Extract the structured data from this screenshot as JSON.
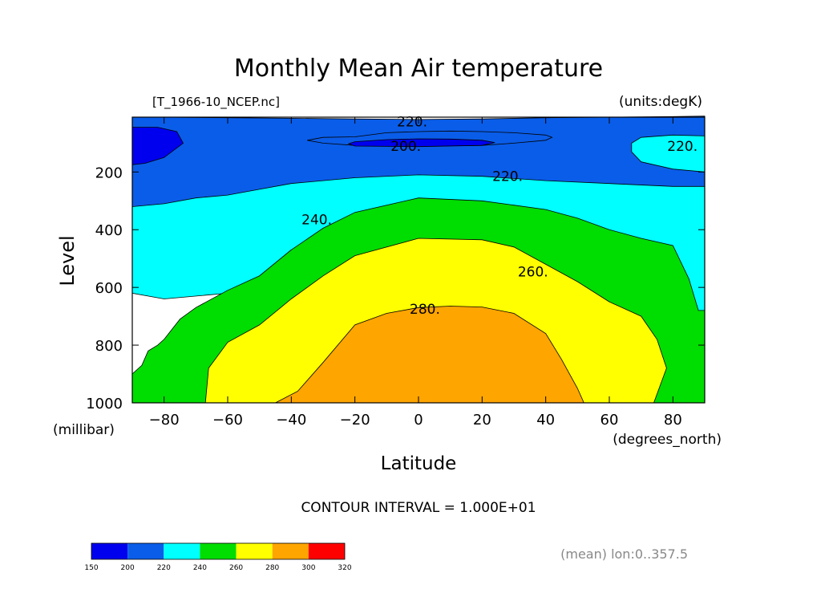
{
  "chart_data": {
    "type": "heatmap",
    "title": "Monthly Mean Air temperature",
    "file_label": "[T_1966-10_NCEP.nc]",
    "units_label": "(units:degK)",
    "xlabel": "Latitude",
    "x_units": "(degrees_north)",
    "ylabel": "Level",
    "y_units": "(millibar)",
    "xlim": [
      -90,
      90
    ],
    "ylim": [
      1000,
      10
    ],
    "x_ticks": [
      -80,
      -60,
      -40,
      -20,
      0,
      20,
      40,
      60,
      80
    ],
    "y_ticks": [
      200,
      400,
      600,
      800,
      1000
    ],
    "footer": "CONTOUR INTERVAL = 1.000E+01",
    "subtitle": "(mean) lon:0..357.5",
    "colorbar": {
      "levels": [
        150,
        200,
        220,
        240,
        260,
        280,
        300,
        320
      ],
      "colors": [
        "#0000ee",
        "#0a5de8",
        "#00ffff",
        "#00dd00",
        "#ffff00",
        "#ffa500",
        "#ff0000"
      ]
    },
    "contour_labels": [
      {
        "value": "220.",
        "lat": -2,
        "level": 25
      },
      {
        "value": "200.",
        "lat": -4,
        "level": 110
      },
      {
        "value": "220.",
        "lat": 28,
        "level": 215
      },
      {
        "value": "220.",
        "lat": 83,
        "level": 110
      },
      {
        "value": "240.",
        "lat": -32,
        "level": 365
      },
      {
        "value": "260.",
        "lat": 36,
        "level": 545
      },
      {
        "value": "280.",
        "lat": 2,
        "level": 675
      }
    ],
    "regions": [
      {
        "level": 200,
        "color": "#0a5de8",
        "points": [
          [
            -90,
            10
          ],
          [
            -80,
            10
          ],
          [
            -60,
            12
          ],
          [
            -40,
            14
          ],
          [
            -20,
            16
          ],
          [
            0,
            18
          ],
          [
            20,
            16
          ],
          [
            40,
            12
          ],
          [
            60,
            10
          ],
          [
            80,
            8
          ],
          [
            90,
            6
          ],
          [
            90,
            520
          ],
          [
            85,
            520
          ],
          [
            70,
            510
          ],
          [
            60,
            470
          ],
          [
            50,
            420
          ],
          [
            40,
            380
          ],
          [
            30,
            360
          ],
          [
            20,
            350
          ],
          [
            0,
            345
          ],
          [
            -20,
            360
          ],
          [
            -40,
            420
          ],
          [
            -60,
            530
          ],
          [
            -80,
            600
          ],
          [
            -90,
            620
          ]
        ]
      },
      {
        "level": 220,
        "color": "#00ffff",
        "points": [
          [
            -90,
            320
          ],
          [
            -80,
            310
          ],
          [
            -70,
            290
          ],
          [
            -60,
            280
          ],
          [
            -50,
            260
          ],
          [
            -40,
            240
          ],
          [
            -20,
            220
          ],
          [
            0,
            210
          ],
          [
            20,
            215
          ],
          [
            40,
            230
          ],
          [
            60,
            240
          ],
          [
            80,
            250
          ],
          [
            90,
            250
          ],
          [
            90,
            680
          ],
          [
            85,
            680
          ],
          [
            80,
            640
          ],
          [
            70,
            610
          ],
          [
            60,
            540
          ],
          [
            50,
            490
          ],
          [
            40,
            440
          ],
          [
            30,
            420
          ],
          [
            20,
            410
          ],
          [
            0,
            410
          ],
          [
            -20,
            420
          ],
          [
            -40,
            470
          ],
          [
            -50,
            560
          ],
          [
            -60,
            620
          ],
          [
            -80,
            640
          ],
          [
            -90,
            620
          ]
        ]
      },
      {
        "level": 200,
        "color": "#0a5de8",
        "points": [
          [
            -20,
            78
          ],
          [
            -10,
            64
          ],
          [
            0,
            60
          ],
          [
            10,
            58
          ],
          [
            20,
            60
          ],
          [
            30,
            64
          ],
          [
            40,
            72
          ],
          [
            42,
            80
          ],
          [
            40,
            90
          ],
          [
            30,
            100
          ],
          [
            20,
            108
          ],
          [
            0,
            110
          ],
          [
            -20,
            108
          ],
          [
            -30,
            100
          ],
          [
            -35,
            90
          ],
          [
            -30,
            80
          ]
        ]
      },
      {
        "level": 150,
        "color": "#0000ee",
        "points": [
          [
            -90,
            45
          ],
          [
            -82,
            45
          ],
          [
            -76,
            60
          ],
          [
            -74,
            100
          ],
          [
            -80,
            150
          ],
          [
            -86,
            170
          ],
          [
            -90,
            175
          ]
        ]
      },
      {
        "level": 150,
        "color": "#0000ee",
        "points": [
          [
            -20,
            95
          ],
          [
            -10,
            88
          ],
          [
            0,
            85
          ],
          [
            10,
            86
          ],
          [
            20,
            90
          ],
          [
            24,
            98
          ],
          [
            20,
            108
          ],
          [
            0,
            112
          ],
          [
            -20,
            110
          ],
          [
            -22,
            102
          ]
        ]
      },
      {
        "level": 220,
        "color": "#00ffff",
        "points": [
          [
            70,
            80
          ],
          [
            80,
            72
          ],
          [
            90,
            75
          ],
          [
            90,
            200
          ],
          [
            80,
            190
          ],
          [
            70,
            165
          ],
          [
            67,
            130
          ],
          [
            67,
            100
          ]
        ]
      },
      {
        "level": 240,
        "color": "#00dd00",
        "points": [
          [
            -90,
            900
          ],
          [
            -87,
            870
          ],
          [
            -85,
            820
          ],
          [
            -82,
            800
          ],
          [
            -80,
            780
          ],
          [
            -75,
            710
          ],
          [
            -70,
            670
          ],
          [
            -60,
            610
          ],
          [
            -50,
            560
          ],
          [
            -40,
            470
          ],
          [
            -30,
            395
          ],
          [
            -20,
            340
          ],
          [
            0,
            290
          ],
          [
            20,
            300
          ],
          [
            30,
            315
          ],
          [
            40,
            330
          ],
          [
            50,
            360
          ],
          [
            60,
            400
          ],
          [
            70,
            430
          ],
          [
            80,
            455
          ],
          [
            85,
            570
          ],
          [
            88,
            680
          ],
          [
            90,
            680
          ],
          [
            90,
            1000
          ],
          [
            -90,
            1000
          ]
        ]
      },
      {
        "level": 260,
        "color": "#ffff00",
        "points": [
          [
            -67,
            1000
          ],
          [
            -66,
            880
          ],
          [
            -60,
            790
          ],
          [
            -50,
            730
          ],
          [
            -40,
            640
          ],
          [
            -30,
            560
          ],
          [
            -20,
            490
          ],
          [
            0,
            430
          ],
          [
            20,
            435
          ],
          [
            30,
            460
          ],
          [
            40,
            520
          ],
          [
            50,
            580
          ],
          [
            60,
            650
          ],
          [
            70,
            700
          ],
          [
            75,
            780
          ],
          [
            78,
            880
          ],
          [
            74,
            1000
          ]
        ]
      },
      {
        "level": 280,
        "color": "#ffa500",
        "points": [
          [
            -45,
            1000
          ],
          [
            -38,
            960
          ],
          [
            -30,
            860
          ],
          [
            -20,
            730
          ],
          [
            -10,
            690
          ],
          [
            0,
            670
          ],
          [
            10,
            665
          ],
          [
            20,
            668
          ],
          [
            30,
            690
          ],
          [
            40,
            760
          ],
          [
            45,
            850
          ],
          [
            50,
            950
          ],
          [
            52,
            1000
          ]
        ]
      }
    ]
  }
}
